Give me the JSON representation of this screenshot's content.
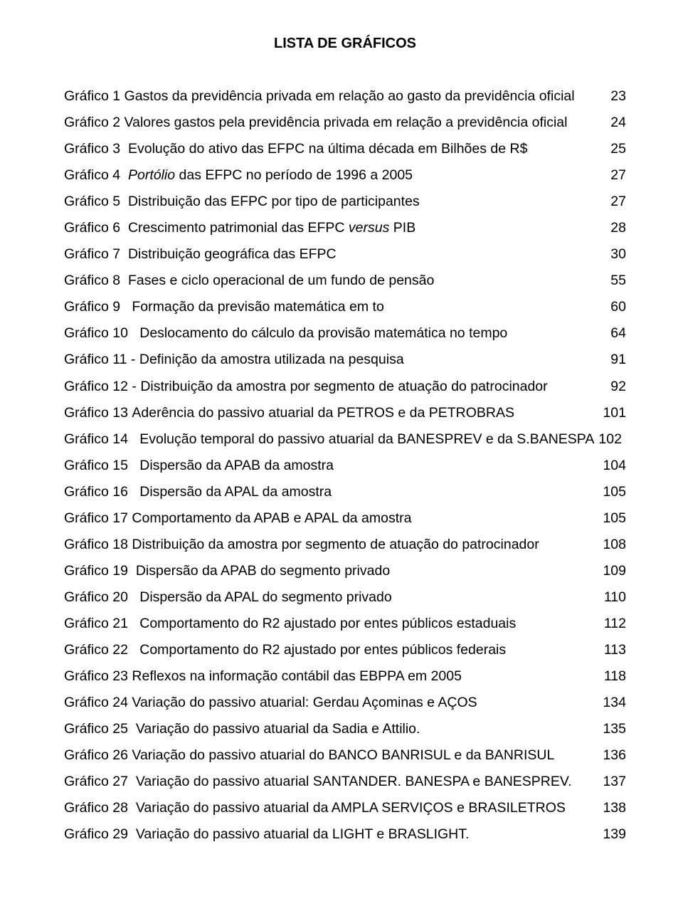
{
  "title": "LISTA DE GRÁFICOS",
  "entries": [
    {
      "prefix": "Gráfico 1",
      "gap": " ",
      "label": "Gastos da previdência privada em relação ao gasto da previdência oficial",
      "page": "23"
    },
    {
      "prefix": "Gráfico 2",
      "gap": " ",
      "label": "Valores gastos pela previdência privada em relação a previdência oficial",
      "page": "24"
    },
    {
      "prefix": "Gráfico 3",
      "gap": "  ",
      "label": "Evolução do ativo das EFPC na última década em Bilhões de R$",
      "page": "25"
    },
    {
      "prefix": "Gráfico 4",
      "gap": "  ",
      "labelHtml": "<span class='italic'>Portólio</span> das EFPC no período de 1996 a 2005",
      "page": "27"
    },
    {
      "prefix": "Gráfico 5",
      "gap": "  ",
      "label": "Distribuição das EFPC por tipo de participantes",
      "page": "27"
    },
    {
      "prefix": "Gráfico 6",
      "gap": "  ",
      "labelHtml": "Crescimento patrimonial das EFPC <span class='italic'>versus</span> PIB",
      "page": "28"
    },
    {
      "prefix": "Gráfico 7",
      "gap": "  ",
      "label": "Distribuição geográfica das EFPC",
      "page": "30"
    },
    {
      "prefix": "Gráfico 8",
      "gap": "  ",
      "label": "Fases e ciclo operacional de um fundo de pensão",
      "page": "55"
    },
    {
      "prefix": "Gráfico 9",
      "gap": "   ",
      "label": "Formação da previsão matemática em to",
      "page": "60"
    },
    {
      "prefix": "Gráfico 10",
      "gap": "   ",
      "label": "Deslocamento do cálculo da provisão matemática no tempo",
      "page": "64"
    },
    {
      "prefix": "Gráfico 11",
      "gap": " - ",
      "label": "Definição da amostra utilizada na pesquisa",
      "page": "91"
    },
    {
      "prefix": "Gráfico 12",
      "gap": " - ",
      "label": "Distribuição da amostra por segmento de atuação do patrocinador",
      "page": "92"
    },
    {
      "prefix": "Gráfico 13",
      "gap": " ",
      "label": "Aderência do passivo atuarial da PETROS e da PETROBRAS",
      "page": "101"
    },
    {
      "prefix": "Gráfico 14",
      "gap": "   ",
      "label": "Evolução temporal do passivo atuarial da BANESPREV e da S.BANESPA",
      "page": "102",
      "noLeader": true
    },
    {
      "prefix": "Gráfico 15",
      "gap": "   ",
      "label": "Dispersão da APAB da amostra",
      "page": "104"
    },
    {
      "prefix": "Gráfico 16",
      "gap": "   ",
      "label": "Dispersão da APAL da amostra",
      "page": "105"
    },
    {
      "prefix": "Gráfico 17",
      "gap": " ",
      "label": "Comportamento da APAB e APAL da amostra",
      "page": "105"
    },
    {
      "prefix": "Gráfico 18",
      "gap": " ",
      "label": "Distribuição da amostra por segmento de atuação do patrocinador",
      "page": "108"
    },
    {
      "prefix": "Gráfico 19",
      "gap": "  ",
      "label": "Dispersão da APAB do segmento privado",
      "page": "109"
    },
    {
      "prefix": "Gráfico 20",
      "gap": "   ",
      "label": "Dispersão da APAL do segmento privado",
      "page": "110"
    },
    {
      "prefix": "Gráfico 21",
      "gap": "   ",
      "label": "Comportamento do R2 ajustado  por entes públicos estaduais",
      "page": "112"
    },
    {
      "prefix": "Gráfico 22",
      "gap": "   ",
      "label": "Comportamento do R2 ajustado por entes públicos federais",
      "page": "113"
    },
    {
      "prefix": "Gráfico 23",
      "gap": " ",
      "label": "Reflexos na informação contábil das EBPPA em 2005",
      "page": "118"
    },
    {
      "prefix": "Gráfico 24",
      "gap": " ",
      "label": "Variação do passivo atuarial: Gerdau Açominas e AÇOS",
      "page": "134"
    },
    {
      "prefix": "Gráfico 25",
      "gap": "  ",
      "label": "Variação do passivo atuarial da Sadia e Attilio.",
      "page": "135"
    },
    {
      "prefix": "Gráfico 26",
      "gap": " ",
      "label": "Variação do passivo atuarial do BANCO BANRISUL e da BANRISUL",
      "page": "136"
    },
    {
      "prefix": "Gráfico 27",
      "gap": "  ",
      "label": "Variação do passivo atuarial SANTANDER. BANESPA e BANESPREV.",
      "page": "137"
    },
    {
      "prefix": "Gráfico 28",
      "gap": "  ",
      "label": "Variação do passivo atuarial da AMPLA SERVIÇOS e BRASILETROS",
      "page": "138"
    },
    {
      "prefix": "Gráfico 29",
      "gap": "  ",
      "label": "Variação do passivo atuarial da LIGHT  e BRASLIGHT.",
      "page": "139"
    }
  ]
}
